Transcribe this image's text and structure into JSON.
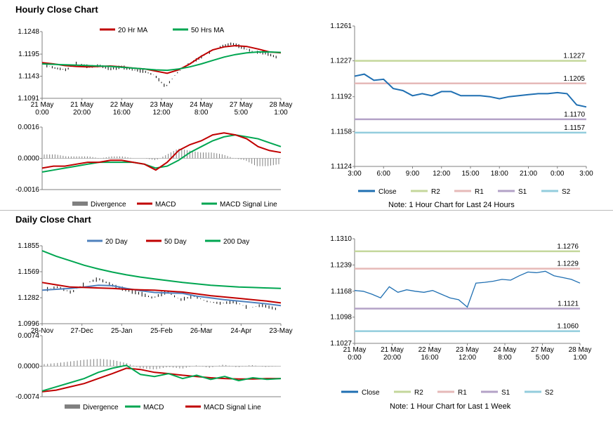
{
  "hourly": {
    "title": "Hourly Close Chart",
    "price_chart": {
      "type": "line",
      "legend": [
        "20 Hr MA",
        "50 Hrs MA"
      ],
      "yticks": [
        "1.1248",
        "1.1195",
        "1.1143",
        "1.1091"
      ],
      "ylim": [
        1.1091,
        1.1248
      ],
      "xticks": [
        [
          "21 May",
          "0:00"
        ],
        [
          "21 May",
          "20:00"
        ],
        [
          "22 May",
          "16:00"
        ],
        [
          "23 May",
          "12:00"
        ],
        [
          "24 May",
          "8:00"
        ],
        [
          "27 May",
          "5:00"
        ],
        [
          "28 May",
          "1:00"
        ]
      ],
      "series": [
        {
          "name": "20 Hr MA",
          "color": "#c00000",
          "values": [
            1.1175,
            1.1172,
            1.1168,
            1.1166,
            1.1165,
            1.1166,
            1.1167,
            1.1165,
            1.1162,
            1.116,
            1.1155,
            1.115,
            1.1158,
            1.1172,
            1.119,
            1.1205,
            1.1212,
            1.1215,
            1.1213,
            1.1207,
            1.12,
            1.1198
          ]
        },
        {
          "name": "50 Hrs MA",
          "color": "#00a651",
          "values": [
            1.1172,
            1.1171,
            1.117,
            1.1169,
            1.1168,
            1.1167,
            1.1166,
            1.1164,
            1.1162,
            1.116,
            1.1158,
            1.1157,
            1.116,
            1.1165,
            1.1172,
            1.118,
            1.1188,
            1.1194,
            1.1198,
            1.12,
            1.12,
            1.1199
          ]
        },
        {
          "name": "Close",
          "color": "#000000",
          "values": [
            1.117,
            1.1162,
            1.1158,
            1.1175,
            1.1165,
            1.1168,
            1.116,
            1.1165,
            1.1158,
            1.1155,
            1.1145,
            1.1118,
            1.115,
            1.117,
            1.1185,
            1.12,
            1.1212,
            1.122,
            1.121,
            1.12,
            1.1198,
            1.1188
          ]
        }
      ]
    },
    "macd_chart": {
      "yticks": [
        "0.0016",
        "0.0000",
        "-0.0016"
      ],
      "ylim": [
        -0.0016,
        0.0016
      ],
      "legend": [
        "Divergence",
        "MACD",
        "MACD Signal Line"
      ],
      "macd_color": "#c00000",
      "signal_color": "#00a651",
      "macd": [
        -0.0005,
        -0.0004,
        -0.0004,
        -0.0003,
        -0.0002,
        -0.0002,
        -0.0001,
        -0.0001,
        -0.0002,
        -0.0003,
        -0.0006,
        -0.0002,
        0.0004,
        0.0007,
        0.0009,
        0.0012,
        0.0013,
        0.0012,
        0.001,
        0.0006,
        0.0004,
        0.0003
      ],
      "signal": [
        -0.0007,
        -0.0006,
        -0.0005,
        -0.0004,
        -0.0003,
        -0.0002,
        -0.0002,
        -0.0002,
        -0.0002,
        -0.0003,
        -0.0005,
        -0.0004,
        -0.0001,
        0.0003,
        0.0006,
        0.0009,
        0.0011,
        0.0012,
        0.0011,
        0.001,
        0.0008,
        0.0006
      ],
      "divergence": [
        0.0002,
        0.0002,
        0.0001,
        0.0001,
        0.0001,
        0.0,
        0.0001,
        0.0001,
        0.0,
        0.0,
        -0.0001,
        0.0002,
        0.0005,
        0.0004,
        0.0003,
        0.0003,
        0.0002,
        0.0,
        -0.0001,
        -0.0004,
        -0.0004,
        -0.0003
      ]
    },
    "levels_chart": {
      "yticks": [
        "1.1261",
        "1.1227",
        "1.1192",
        "1.1158",
        "1.1124"
      ],
      "ylim": [
        1.1124,
        1.1261
      ],
      "xticks": [
        "3:00",
        "6:00",
        "9:00",
        "12:00",
        "15:00",
        "18:00",
        "21:00",
        "0:00",
        "3:00"
      ],
      "levels": [
        {
          "name": "R2",
          "value": 1.1227,
          "label": "1.1227",
          "color": "#c4d79b"
        },
        {
          "name": "R1",
          "value": 1.1205,
          "label": "1.1205",
          "color": "#e6b9b8"
        },
        {
          "name": "S1",
          "value": 1.117,
          "label": "1.1170",
          "color": "#b3a2c7"
        },
        {
          "name": "S2",
          "value": 1.1157,
          "label": "1.1157",
          "color": "#93cddd"
        }
      ],
      "close_color": "#1f6fb2",
      "close": [
        1.1212,
        1.1214,
        1.1208,
        1.1209,
        1.12,
        1.1198,
        1.1193,
        1.1195,
        1.1193,
        1.1197,
        1.1197,
        1.1193,
        1.1193,
        1.1193,
        1.1192,
        1.119,
        1.1192,
        1.1193,
        1.1194,
        1.1195,
        1.1195,
        1.1196,
        1.1195,
        1.1184,
        1.1182
      ],
      "legend": [
        "Close",
        "R2",
        "R1",
        "S1",
        "S2"
      ],
      "note": "Note: 1 Hour Chart for Last 24 Hours"
    }
  },
  "daily": {
    "title": "Daily Close Chart",
    "price_chart": {
      "type": "line",
      "legend": [
        "20 Day",
        "50 Day",
        "200 Day"
      ],
      "yticks": [
        "1.1855",
        "1.1569",
        "1.1282",
        "1.0996"
      ],
      "ylim": [
        1.0996,
        1.1855
      ],
      "xticks": [
        "28-Nov",
        "27-Dec",
        "25-Jan",
        "25-Feb",
        "26-Mar",
        "24-Apr",
        "23-May"
      ],
      "series": [
        {
          "name": "20 Day",
          "color": "#4f81bd",
          "values": [
            1.1365,
            1.1375,
            1.1385,
            1.14,
            1.142,
            1.1415,
            1.1385,
            1.136,
            1.134,
            1.1335,
            1.133,
            1.13,
            1.128,
            1.126,
            1.1245,
            1.123,
            1.1215,
            1.1195
          ]
        },
        {
          "name": "50 Day",
          "color": "#c00000",
          "values": [
            1.145,
            1.1425,
            1.14,
            1.1395,
            1.139,
            1.1385,
            1.1375,
            1.137,
            1.1365,
            1.1355,
            1.1345,
            1.1325,
            1.1305,
            1.129,
            1.1275,
            1.126,
            1.1245,
            1.1225
          ]
        },
        {
          "name": "200 Day",
          "color": "#00a651",
          "values": [
            1.18,
            1.174,
            1.169,
            1.164,
            1.16,
            1.1565,
            1.1535,
            1.151,
            1.149,
            1.147,
            1.145,
            1.1435,
            1.142,
            1.141,
            1.14,
            1.1395,
            1.139,
            1.1385
          ]
        },
        {
          "name": "Close",
          "color": "#000000",
          "values": [
            1.137,
            1.14,
            1.134,
            1.144,
            1.149,
            1.142,
            1.137,
            1.133,
            1.128,
            1.135,
            1.126,
            1.13,
            1.124,
            1.122,
            1.124,
            1.117,
            1.12,
            1.116
          ]
        }
      ]
    },
    "macd_chart": {
      "yticks": [
        "0.0074",
        "0.0000",
        "-0.0074"
      ],
      "ylim": [
        -0.0074,
        0.0074
      ],
      "legend": [
        "Divergence",
        "MACD",
        "MACD Signal Line"
      ],
      "macd_color": "#00a651",
      "signal_color": "#c00000",
      "macd": [
        -0.006,
        -0.005,
        -0.004,
        -0.003,
        -0.0015,
        -0.0005,
        0.0002,
        -0.002,
        -0.0025,
        -0.0018,
        -0.003,
        -0.0022,
        -0.0032,
        -0.0025,
        -0.0035,
        -0.0028,
        -0.0032,
        -0.003
      ],
      "signal": [
        -0.0062,
        -0.0058,
        -0.005,
        -0.0042,
        -0.003,
        -0.0018,
        -0.0005,
        -0.0008,
        -0.0015,
        -0.0018,
        -0.0022,
        -0.0025,
        -0.0028,
        -0.003,
        -0.0031,
        -0.0031,
        -0.003,
        -0.003
      ],
      "divergence": [
        0.0005,
        0.0008,
        0.0012,
        0.0016,
        0.0018,
        0.0015,
        0.0007,
        -0.0005,
        -0.0008,
        -0.0002,
        -0.0006,
        0.0002,
        -0.0004,
        0.0004,
        -0.0003,
        0.0003,
        -0.0002,
        0.0
      ]
    },
    "levels_chart": {
      "yticks": [
        "1.1310",
        "1.1239",
        "1.1168",
        "1.1098",
        "1.1027"
      ],
      "ylim": [
        1.1027,
        1.131
      ],
      "xticks": [
        [
          "21 May",
          "0:00"
        ],
        [
          "21 May",
          "20:00"
        ],
        [
          "22 May",
          "16:00"
        ],
        [
          "23 May",
          "12:00"
        ],
        [
          "24 May",
          "8:00"
        ],
        [
          "27 May",
          "5:00"
        ],
        [
          "28 May",
          "1:00"
        ]
      ],
      "levels": [
        {
          "name": "R2",
          "value": 1.1276,
          "label": "1.1276",
          "color": "#c4d79b"
        },
        {
          "name": "R1",
          "value": 1.1229,
          "label": "1.1229",
          "color": "#e6b9b8"
        },
        {
          "name": "S1",
          "value": 1.1121,
          "label": "1.1121",
          "color": "#b3a2c7"
        },
        {
          "name": "S2",
          "value": 1.106,
          "label": "1.1060",
          "color": "#93cddd"
        }
      ],
      "close_color": "#1f6fb2",
      "close": [
        1.117,
        1.1168,
        1.116,
        1.115,
        1.118,
        1.1165,
        1.1172,
        1.1168,
        1.1165,
        1.117,
        1.116,
        1.115,
        1.1145,
        1.1125,
        1.119,
        1.1192,
        1.1195,
        1.12,
        1.1198,
        1.121,
        1.122,
        1.1218,
        1.1222,
        1.121,
        1.1205,
        1.12,
        1.119
      ],
      "legend": [
        "Close",
        "R2",
        "R1",
        "S1",
        "S2"
      ],
      "note": "Note: 1 Hour Chart for Last 1 Week"
    }
  }
}
